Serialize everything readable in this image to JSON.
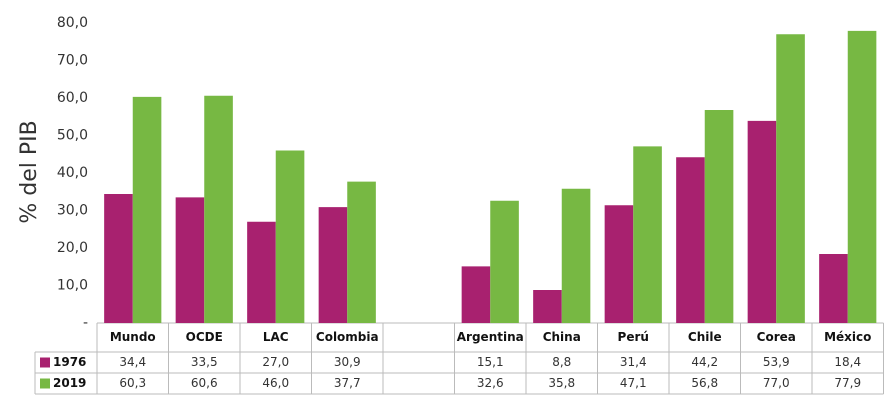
{
  "chart_data": {
    "type": "bar",
    "y_label": "% del PIB",
    "categories": [
      "Mundo",
      "OCDE",
      "LAC",
      "Colombia",
      null,
      "Argentina",
      "China",
      "Perú",
      "Chile",
      "Corea",
      "México"
    ],
    "series": [
      {
        "name": "1976",
        "color": "#a8216f",
        "values": [
          34.4,
          33.5,
          27.0,
          30.9,
          null,
          15.1,
          8.8,
          31.4,
          44.2,
          53.9,
          18.4
        ],
        "value_labels": [
          "34,4",
          "33,5",
          "27,0",
          "30,9",
          null,
          "15,1",
          "8,8",
          "31,4",
          "44,2",
          "53,9",
          "18,4"
        ]
      },
      {
        "name": "2019",
        "color": "#77b843",
        "values": [
          60.3,
          60.6,
          46.0,
          37.7,
          null,
          32.6,
          35.8,
          47.1,
          56.8,
          77.0,
          77.9
        ],
        "value_labels": [
          "60,3",
          "60,6",
          "46,0",
          "37,7",
          null,
          "32,6",
          "35,8",
          "47,1",
          "56,8",
          "77,0",
          "77,9"
        ]
      }
    ],
    "ylim": [
      0,
      80
    ],
    "yticks": [
      {
        "value": 0,
        "label": "-"
      },
      {
        "value": 10,
        "label": "10,0"
      },
      {
        "value": 20,
        "label": "20,0"
      },
      {
        "value": 30,
        "label": "30,0"
      },
      {
        "value": 40,
        "label": "40,0"
      },
      {
        "value": 50,
        "label": "50,0"
      },
      {
        "value": 60,
        "label": "60,0"
      },
      {
        "value": 70,
        "label": "70,0"
      },
      {
        "value": 80,
        "label": "80,0"
      }
    ],
    "grid": false
  }
}
